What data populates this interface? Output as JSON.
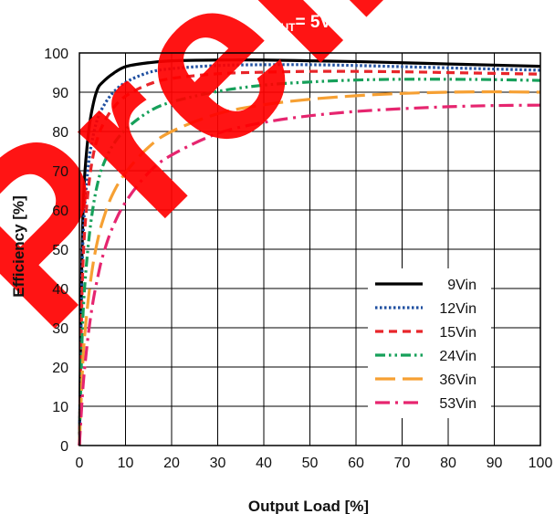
{
  "chart_data": {
    "type": "line",
    "title": "V",
    "title_sub": "OUT",
    "title_rest": "= 5VDC",
    "xlabel": "Output Load [%]",
    "ylabel": "Efficiency [%]",
    "xlim": [
      0,
      100
    ],
    "ylim": [
      0,
      100
    ],
    "xticks": [
      "0",
      "10",
      "20",
      "30",
      "40",
      "50",
      "60",
      "70",
      "80",
      "90",
      "100"
    ],
    "yticks": [
      "0",
      "10",
      "20",
      "30",
      "40",
      "50",
      "60",
      "70",
      "80",
      "90",
      "100"
    ],
    "grid": true,
    "legend_position": "bottom-right",
    "watermark": "Preliminary",
    "series": [
      {
        "name": "9Vin",
        "color": "#000000",
        "dash": "solid",
        "x": [
          0,
          0.5,
          1,
          2,
          3,
          4,
          5,
          7,
          10,
          15,
          20,
          30,
          40,
          50,
          60,
          70,
          80,
          90,
          100
        ],
        "y": [
          0,
          45,
          66,
          80,
          87,
          91,
          92.5,
          94.5,
          96.5,
          97.5,
          98,
          98.2,
          98.2,
          98,
          97.8,
          97.5,
          97.2,
          96.9,
          96.6
        ]
      },
      {
        "name": "12Vin",
        "color": "#1f4fa0",
        "dash": "dot",
        "x": [
          0,
          0.5,
          1,
          2,
          3,
          4,
          5,
          7,
          10,
          15,
          20,
          30,
          40,
          50,
          60,
          70,
          80,
          90,
          100
        ],
        "y": [
          0,
          40,
          58,
          72,
          79,
          83.5,
          86,
          89.5,
          92.5,
          95,
          96,
          96.8,
          97,
          97,
          96.8,
          96.5,
          96.2,
          95.9,
          95.6
        ]
      },
      {
        "name": "15Vin",
        "color": "#e8252a",
        "dash": "dash",
        "x": [
          0,
          0.5,
          1,
          2,
          3,
          4,
          5,
          7,
          10,
          15,
          20,
          30,
          40,
          50,
          60,
          70,
          80,
          90,
          100
        ],
        "y": [
          0,
          35,
          52,
          66,
          74,
          78.5,
          81.5,
          85.5,
          89,
          92,
          93.5,
          94.7,
          95.1,
          95.3,
          95.3,
          95.2,
          95,
          94.8,
          94.6
        ]
      },
      {
        "name": "24Vin",
        "color": "#16a05a",
        "dash": "dashdotdot",
        "x": [
          0,
          0.5,
          1,
          2,
          3,
          4,
          5,
          7,
          10,
          15,
          20,
          30,
          40,
          50,
          60,
          70,
          80,
          90,
          100
        ],
        "y": [
          0,
          24,
          38,
          52,
          61,
          67,
          71,
          76,
          80.5,
          85,
          87.5,
          90.2,
          91.8,
          92.6,
          93.1,
          93.3,
          93.3,
          93.2,
          93
        ]
      },
      {
        "name": "36Vin",
        "color": "#f6a033",
        "dash": "longdash",
        "x": [
          0,
          0.5,
          1,
          2,
          3,
          4,
          5,
          7,
          10,
          15,
          20,
          30,
          40,
          50,
          60,
          70,
          80,
          90,
          100
        ],
        "y": [
          0,
          15,
          26,
          38,
          46.5,
          52.5,
          57,
          63.5,
          69.5,
          76,
          80,
          84.5,
          86.8,
          88.2,
          89.1,
          89.7,
          90,
          90.1,
          90
        ]
      },
      {
        "name": "53Vin",
        "color": "#e6256f",
        "dash": "dashdot",
        "x": [
          0,
          0.5,
          1,
          2,
          3,
          4,
          5,
          7,
          10,
          15,
          20,
          30,
          40,
          50,
          60,
          70,
          80,
          90,
          100
        ],
        "y": [
          0,
          10,
          18,
          29,
          37,
          43,
          48,
          55,
          62,
          69.5,
          74,
          79.5,
          82.3,
          84,
          85.1,
          85.8,
          86.3,
          86.6,
          86.7
        ]
      }
    ]
  }
}
